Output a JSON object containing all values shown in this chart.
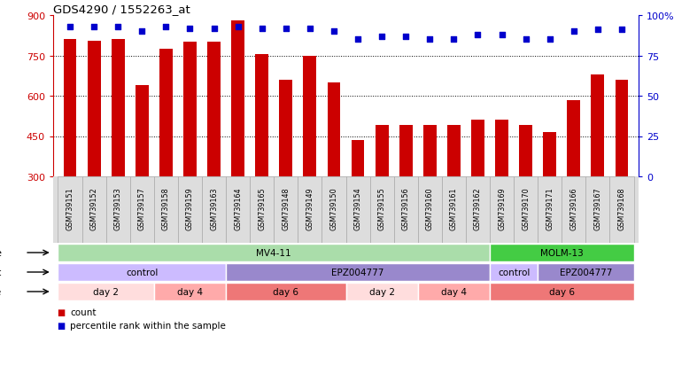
{
  "title": "GDS4290 / 1552263_at",
  "samples": [
    "GSM739151",
    "GSM739152",
    "GSM739153",
    "GSM739157",
    "GSM739158",
    "GSM739159",
    "GSM739163",
    "GSM739164",
    "GSM739165",
    "GSM739148",
    "GSM739149",
    "GSM739150",
    "GSM739154",
    "GSM739155",
    "GSM739156",
    "GSM739160",
    "GSM739161",
    "GSM739162",
    "GSM739169",
    "GSM739170",
    "GSM739171",
    "GSM739166",
    "GSM739167",
    "GSM739168"
  ],
  "counts": [
    810,
    805,
    810,
    640,
    775,
    800,
    800,
    880,
    755,
    660,
    750,
    650,
    435,
    490,
    490,
    490,
    490,
    510,
    510,
    490,
    465,
    585,
    680,
    660
  ],
  "percentile_ranks": [
    93,
    93,
    93,
    90,
    93,
    92,
    92,
    93,
    92,
    92,
    92,
    90,
    85,
    87,
    87,
    85,
    85,
    88,
    88,
    85,
    85,
    90,
    91,
    91
  ],
  "bar_color": "#cc0000",
  "dot_color": "#0000cc",
  "ylim_left": [
    300,
    900
  ],
  "ylim_right": [
    0,
    100
  ],
  "yticks_left": [
    300,
    450,
    600,
    750,
    900
  ],
  "yticks_right": [
    0,
    25,
    50,
    75,
    100
  ],
  "cell_line_data": [
    {
      "label": "MV4-11",
      "start": 0,
      "end": 18,
      "color": "#aaddaa"
    },
    {
      "label": "MOLM-13",
      "start": 18,
      "end": 24,
      "color": "#44cc44"
    }
  ],
  "agent_data": [
    {
      "label": "control",
      "start": 0,
      "end": 7,
      "color": "#ccbbff"
    },
    {
      "label": "EPZ004777",
      "start": 7,
      "end": 18,
      "color": "#9988cc"
    },
    {
      "label": "control",
      "start": 18,
      "end": 20,
      "color": "#ccbbff"
    },
    {
      "label": "EPZ004777",
      "start": 20,
      "end": 24,
      "color": "#9988cc"
    }
  ],
  "time_data": [
    {
      "label": "day 2",
      "start": 0,
      "end": 4,
      "color": "#ffdddd"
    },
    {
      "label": "day 4",
      "start": 4,
      "end": 7,
      "color": "#ffaaaa"
    },
    {
      "label": "day 6",
      "start": 7,
      "end": 12,
      "color": "#ee7777"
    },
    {
      "label": "day 2",
      "start": 12,
      "end": 15,
      "color": "#ffdddd"
    },
    {
      "label": "day 4",
      "start": 15,
      "end": 18,
      "color": "#ffaaaa"
    },
    {
      "label": "day 6",
      "start": 18,
      "end": 24,
      "color": "#ee7777"
    }
  ],
  "sample_label_bg": "#dddddd",
  "background_color": "#ffffff",
  "axis_color_left": "#cc0000",
  "axis_color_right": "#0000cc",
  "grid_color": "black",
  "legend_count_color": "#cc0000",
  "legend_pct_color": "#0000cc"
}
